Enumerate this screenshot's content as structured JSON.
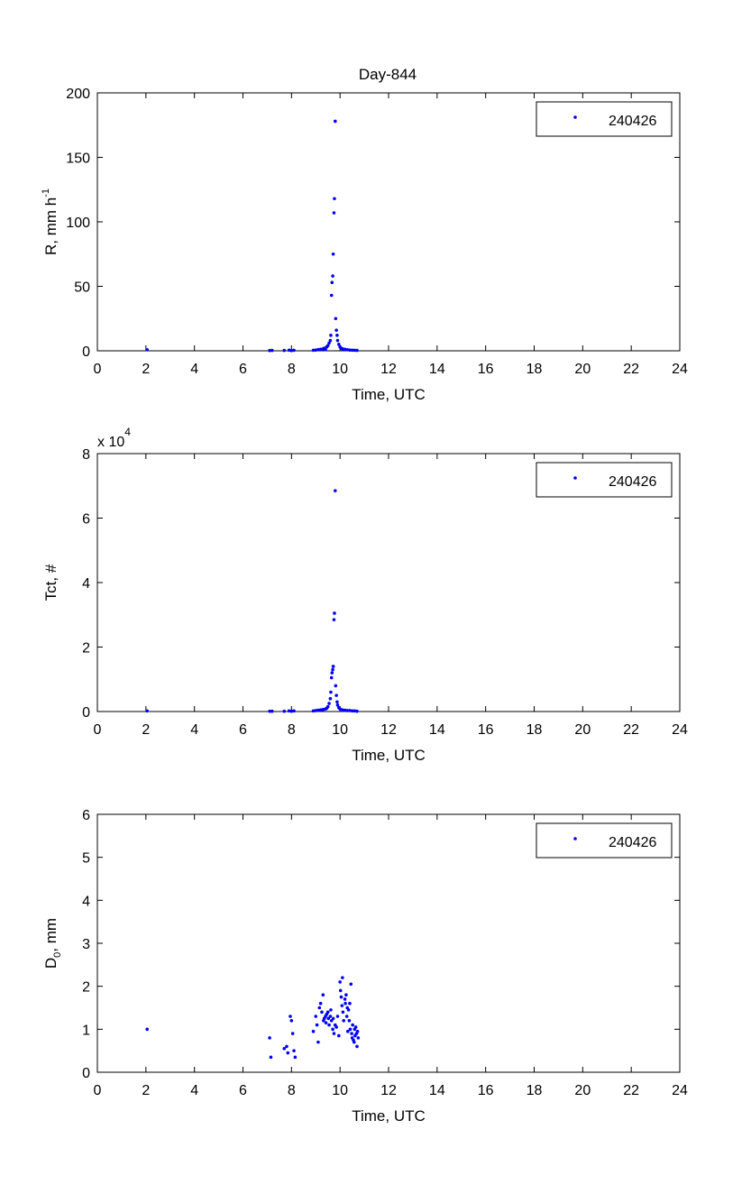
{
  "figure": {
    "title": "Day-844"
  },
  "chart_data": [
    {
      "type": "scatter",
      "title": "Day-844",
      "xlabel": "Time, UTC",
      "ylabel": "R, mm h",
      "ylabel_sup": "-1",
      "xlim": [
        0,
        24
      ],
      "ylim": [
        0,
        200
      ],
      "xticks": [
        "0",
        "2",
        "4",
        "6",
        "8",
        "10",
        "12",
        "14",
        "16",
        "18",
        "20",
        "22",
        "24"
      ],
      "yticks": [
        "0",
        "50",
        "100",
        "150",
        "200"
      ],
      "exponent": "",
      "legend": "top-right",
      "grid": false,
      "color": "#0000ff",
      "series": [
        {
          "name": "240426",
          "points": [
            [
              2.05,
              0.8
            ],
            [
              7.1,
              0.2
            ],
            [
              7.2,
              0.3
            ],
            [
              7.7,
              0.3
            ],
            [
              7.9,
              0.5
            ],
            [
              8.0,
              0.2
            ],
            [
              8.1,
              0.4
            ],
            [
              8.9,
              0.4
            ],
            [
              9.0,
              0.6
            ],
            [
              9.1,
              0.9
            ],
            [
              9.2,
              1.2
            ],
            [
              9.3,
              1.5
            ],
            [
              9.35,
              2.0
            ],
            [
              9.4,
              1.0
            ],
            [
              9.45,
              3.0
            ],
            [
              9.5,
              4.0
            ],
            [
              9.55,
              6.0
            ],
            [
              9.6,
              8.0
            ],
            [
              9.62,
              12.0
            ],
            [
              9.65,
              43.0
            ],
            [
              9.67,
              53.0
            ],
            [
              9.7,
              58.0
            ],
            [
              9.72,
              75.0
            ],
            [
              9.75,
              107.0
            ],
            [
              9.77,
              118.0
            ],
            [
              9.8,
              178.0
            ],
            [
              9.82,
              25.0
            ],
            [
              9.85,
              16.0
            ],
            [
              9.88,
              12.0
            ],
            [
              9.9,
              8.0
            ],
            [
              9.95,
              5.0
            ],
            [
              10.0,
              3.0
            ],
            [
              10.05,
              2.0
            ],
            [
              10.1,
              1.5
            ],
            [
              10.2,
              1.2
            ],
            [
              10.3,
              0.8
            ],
            [
              10.4,
              0.6
            ],
            [
              10.5,
              0.5
            ],
            [
              10.6,
              0.4
            ],
            [
              10.7,
              0.3
            ]
          ]
        }
      ]
    },
    {
      "type": "scatter",
      "title": "",
      "xlabel": "Time, UTC",
      "ylabel": "Tct, #",
      "ylabel_sup": "",
      "xlim": [
        0,
        24
      ],
      "ylim": [
        0,
        8
      ],
      "xticks": [
        "0",
        "2",
        "4",
        "6",
        "8",
        "10",
        "12",
        "14",
        "16",
        "18",
        "20",
        "22",
        "24"
      ],
      "yticks": [
        "0",
        "2",
        "4",
        "6",
        "8"
      ],
      "exponent": "x 10",
      "exponent_sup": "4",
      "legend": "top-right",
      "grid": false,
      "color": "#0000ff",
      "series": [
        {
          "name": "240426",
          "points": [
            [
              2.05,
              0.02
            ],
            [
              7.1,
              0.01
            ],
            [
              7.2,
              0.01
            ],
            [
              7.7,
              0.01
            ],
            [
              7.9,
              0.02
            ],
            [
              8.0,
              0.01
            ],
            [
              8.1,
              0.02
            ],
            [
              8.9,
              0.02
            ],
            [
              9.0,
              0.03
            ],
            [
              9.1,
              0.04
            ],
            [
              9.2,
              0.05
            ],
            [
              9.3,
              0.06
            ],
            [
              9.4,
              0.08
            ],
            [
              9.45,
              0.1
            ],
            [
              9.5,
              0.15
            ],
            [
              9.55,
              0.25
            ],
            [
              9.6,
              0.4
            ],
            [
              9.62,
              0.6
            ],
            [
              9.65,
              1.05
            ],
            [
              9.67,
              1.2
            ],
            [
              9.7,
              1.3
            ],
            [
              9.72,
              1.4
            ],
            [
              9.75,
              2.85
            ],
            [
              9.77,
              3.05
            ],
            [
              9.8,
              6.85
            ],
            [
              9.82,
              0.8
            ],
            [
              9.85,
              0.5
            ],
            [
              9.88,
              0.3
            ],
            [
              9.9,
              0.2
            ],
            [
              9.95,
              0.12
            ],
            [
              10.0,
              0.08
            ],
            [
              10.1,
              0.05
            ],
            [
              10.2,
              0.04
            ],
            [
              10.3,
              0.03
            ],
            [
              10.4,
              0.03
            ],
            [
              10.5,
              0.02
            ],
            [
              10.6,
              0.02
            ],
            [
              10.7,
              0.01
            ]
          ]
        }
      ]
    },
    {
      "type": "scatter",
      "title": "",
      "xlabel": "Time, UTC",
      "ylabel": "D",
      "ylabel_sub": "0",
      "ylabel_suffix": ", mm",
      "ylabel_sup": "",
      "xlim": [
        0,
        24
      ],
      "ylim": [
        0,
        6
      ],
      "xticks": [
        "0",
        "2",
        "4",
        "6",
        "8",
        "10",
        "12",
        "14",
        "16",
        "18",
        "20",
        "22",
        "24"
      ],
      "yticks": [
        "0",
        "1",
        "2",
        "3",
        "4",
        "5",
        "6"
      ],
      "exponent": "",
      "legend": "top-right",
      "grid": false,
      "color": "#0000ff",
      "series": [
        {
          "name": "240426",
          "points": [
            [
              2.05,
              1.0
            ],
            [
              7.1,
              0.8
            ],
            [
              7.15,
              0.35
            ],
            [
              7.7,
              0.55
            ],
            [
              7.8,
              0.6
            ],
            [
              7.85,
              0.45
            ],
            [
              7.95,
              1.3
            ],
            [
              8.0,
              1.2
            ],
            [
              8.05,
              0.9
            ],
            [
              8.1,
              0.5
            ],
            [
              8.15,
              0.35
            ],
            [
              8.9,
              0.95
            ],
            [
              9.0,
              1.3
            ],
            [
              9.05,
              1.1
            ],
            [
              9.1,
              0.7
            ],
            [
              9.15,
              1.5
            ],
            [
              9.2,
              1.6
            ],
            [
              9.25,
              1.4
            ],
            [
              9.3,
              1.8
            ],
            [
              9.32,
              1.2
            ],
            [
              9.35,
              1.25
            ],
            [
              9.4,
              1.3
            ],
            [
              9.42,
              1.15
            ],
            [
              9.45,
              1.35
            ],
            [
              9.5,
              1.4
            ],
            [
              9.52,
              1.25
            ],
            [
              9.55,
              1.1
            ],
            [
              9.6,
              1.3
            ],
            [
              9.62,
              1.45
            ],
            [
              9.65,
              1.2
            ],
            [
              9.7,
              1.0
            ],
            [
              9.72,
              1.25
            ],
            [
              9.75,
              0.9
            ],
            [
              9.8,
              1.1
            ],
            [
              9.85,
              1.05
            ],
            [
              9.9,
              1.3
            ],
            [
              9.95,
              0.85
            ],
            [
              10.0,
              2.1
            ],
            [
              10.02,
              1.9
            ],
            [
              10.05,
              1.75
            ],
            [
              10.08,
              1.55
            ],
            [
              10.1,
              2.2
            ],
            [
              10.12,
              1.4
            ],
            [
              10.15,
              1.2
            ],
            [
              10.2,
              1.7
            ],
            [
              10.22,
              1.6
            ],
            [
              10.25,
              1.8
            ],
            [
              10.28,
              1.3
            ],
            [
              10.3,
              1.5
            ],
            [
              10.32,
              0.95
            ],
            [
              10.35,
              1.45
            ],
            [
              10.38,
              1.2
            ],
            [
              10.4,
              1.6
            ],
            [
              10.42,
              1.0
            ],
            [
              10.45,
              2.05
            ],
            [
              10.48,
              0.9
            ],
            [
              10.5,
              0.8
            ],
            [
              10.52,
              1.1
            ],
            [
              10.55,
              0.75
            ],
            [
              10.58,
              0.7
            ],
            [
              10.6,
              1.0
            ],
            [
              10.62,
              0.85
            ],
            [
              10.65,
              1.05
            ],
            [
              10.68,
              0.9
            ],
            [
              10.7,
              0.6
            ],
            [
              10.72,
              0.95
            ],
            [
              10.75,
              0.8
            ]
          ]
        }
      ]
    }
  ]
}
